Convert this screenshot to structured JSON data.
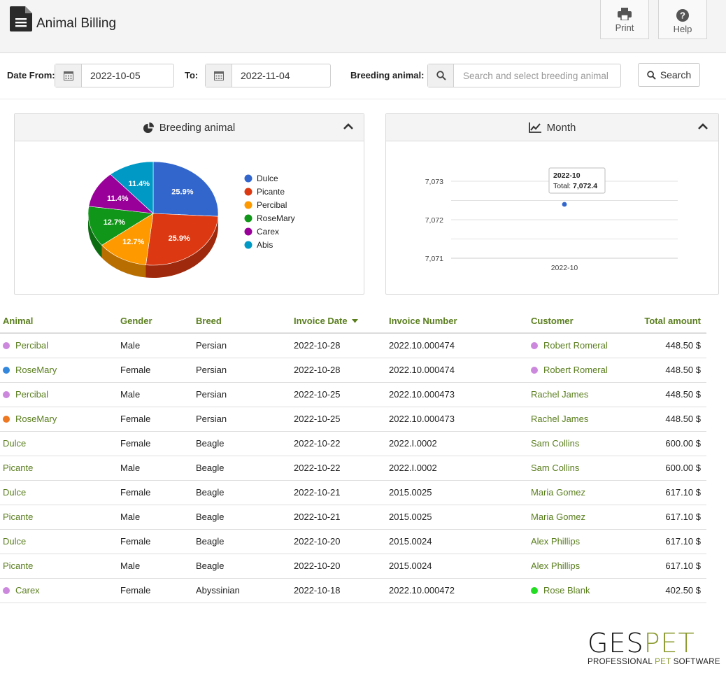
{
  "app": {
    "title": "Animal Billing",
    "icon": "document-icon"
  },
  "toolbar": {
    "print_label": "Print",
    "help_label": "Help"
  },
  "filters": {
    "date_from_label": "Date From:",
    "date_from_value": "2022-10-05",
    "to_label": "To:",
    "date_to_value": "2022-11-04",
    "breeding_label": "Breeding animal:",
    "breeding_placeholder": "Search and select breeding animal",
    "search_label": "Search"
  },
  "panels": {
    "pie_title": "Breeding animal",
    "line_title": "Month"
  },
  "chart_data": [
    {
      "type": "pie",
      "title": "Breeding animal",
      "labels": [
        "Dulce",
        "Picante",
        "Percibal",
        "RoseMary",
        "Carex",
        "Abis"
      ],
      "values": [
        25.9,
        25.9,
        12.7,
        12.7,
        11.4,
        11.4
      ],
      "value_labels": [
        "25.9%",
        "25.9%",
        "12.7%",
        "12.7%",
        "11.4%",
        "11.4%"
      ],
      "colors": [
        "#3366cc",
        "#dc3912",
        "#ff9900",
        "#109618",
        "#990099",
        "#0099c6"
      ],
      "legend": "right"
    },
    {
      "type": "line",
      "title": "Month",
      "categories": [
        "2022-10"
      ],
      "series": [
        {
          "values": [
            7072.4
          ]
        }
      ],
      "yticks": [
        "7,073",
        "7,072",
        "7,071"
      ],
      "ylim": [
        7071,
        7073
      ],
      "grid": true,
      "tooltip": {
        "title": "2022-10",
        "label": "Total:",
        "value": "7,072.4"
      }
    }
  ],
  "table": {
    "columns": [
      "Animal",
      "Gender",
      "Breed",
      "Invoice Date",
      "Invoice Number",
      "Customer",
      "Total amount"
    ],
    "rows": [
      {
        "animal": "Percibal",
        "animal_dot": "#cc88dd",
        "gender": "Male",
        "breed": "Persian",
        "date": "2022-10-28",
        "invoice": "2022.10.000474",
        "customer": "Robert Romeral",
        "customer_dot": "#cc88dd",
        "total": "448.50 $"
      },
      {
        "animal": "RoseMary",
        "animal_dot": "#3388dd",
        "gender": "Female",
        "breed": "Persian",
        "date": "2022-10-28",
        "invoice": "2022.10.000474",
        "customer": "Robert Romeral",
        "customer_dot": "#cc88dd",
        "total": "448.50 $"
      },
      {
        "animal": "Percibal",
        "animal_dot": "#cc88dd",
        "gender": "Male",
        "breed": "Persian",
        "date": "2022-10-25",
        "invoice": "2022.10.000473",
        "customer": "Rachel James",
        "customer_dot": "",
        "total": "448.50 $"
      },
      {
        "animal": "RoseMary",
        "animal_dot": "#ee7722",
        "gender": "Female",
        "breed": "Persian",
        "date": "2022-10-25",
        "invoice": "2022.10.000473",
        "customer": "Rachel James",
        "customer_dot": "",
        "total": "448.50 $"
      },
      {
        "animal": "Dulce",
        "animal_dot": "",
        "gender": "Female",
        "breed": "Beagle",
        "date": "2022-10-22",
        "invoice": "2022.I.0002",
        "customer": "Sam Collins",
        "customer_dot": "",
        "total": "600.00 $"
      },
      {
        "animal": "Picante",
        "animal_dot": "",
        "gender": "Male",
        "breed": "Beagle",
        "date": "2022-10-22",
        "invoice": "2022.I.0002",
        "customer": "Sam Collins",
        "customer_dot": "",
        "total": "600.00 $"
      },
      {
        "animal": "Dulce",
        "animal_dot": "",
        "gender": "Female",
        "breed": "Beagle",
        "date": "2022-10-21",
        "invoice": "2015.0025",
        "customer": "Maria Gomez",
        "customer_dot": "",
        "total": "617.10 $"
      },
      {
        "animal": "Picante",
        "animal_dot": "",
        "gender": "Male",
        "breed": "Beagle",
        "date": "2022-10-21",
        "invoice": "2015.0025",
        "customer": "Maria Gomez",
        "customer_dot": "",
        "total": "617.10 $"
      },
      {
        "animal": "Dulce",
        "animal_dot": "",
        "gender": "Female",
        "breed": "Beagle",
        "date": "2022-10-20",
        "invoice": "2015.0024",
        "customer": "Alex Phillips",
        "customer_dot": "",
        "total": "617.10 $"
      },
      {
        "animal": "Picante",
        "animal_dot": "",
        "gender": "Male",
        "breed": "Beagle",
        "date": "2022-10-20",
        "invoice": "2015.0024",
        "customer": "Alex Phillips",
        "customer_dot": "",
        "total": "617.10 $"
      },
      {
        "animal": "Carex",
        "animal_dot": "#cc88dd",
        "gender": "Female",
        "breed": "Abyssinian",
        "date": "2022-10-18",
        "invoice": "2022.10.000472",
        "customer": "Rose Blank",
        "customer_dot": "#22dd22",
        "total": "402.50 $"
      }
    ]
  },
  "brand": {
    "logo_main": "GESPET",
    "logo_sub": "PROFESSIONAL PET SOFTWARE",
    "accent_color": "#8a9a2e",
    "link_color": "#5a7e1e"
  }
}
